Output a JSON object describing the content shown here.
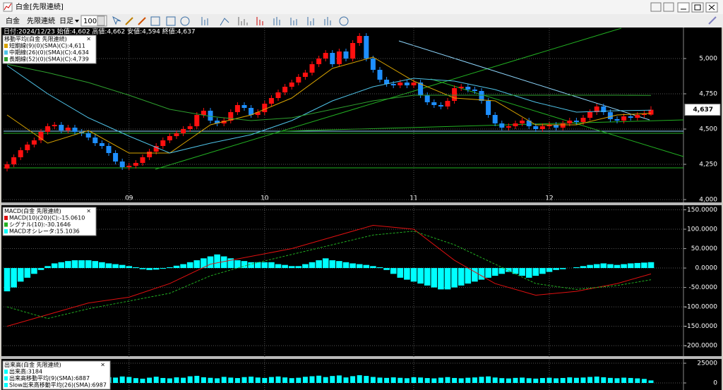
{
  "window": {
    "title": "白金[先限連続]"
  },
  "toolbar": {
    "symbol": "白金",
    "contract": "先限連続",
    "period": "日足",
    "count": "100"
  },
  "chart_data": [
    {
      "type": "candlestick",
      "header": "日付:2024/12/23 始値:4,602 高値:4,662 安値:4,594 終値:4,637",
      "legend_title": "移動平均(白金 先限連続)",
      "categories": [
        null,
        null,
        null,
        null,
        null,
        null,
        null,
        null,
        null,
        null,
        null,
        null,
        null,
        null,
        null,
        null,
        null,
        null,
        "09",
        null,
        null,
        null,
        null,
        null,
        null,
        null,
        null,
        null,
        null,
        null,
        null,
        null,
        null,
        null,
        null,
        null,
        null,
        null,
        "10",
        null,
        null,
        null,
        null,
        null,
        null,
        null,
        null,
        null,
        null,
        null,
        null,
        null,
        null,
        null,
        null,
        null,
        null,
        null,
        null,
        null,
        "11",
        null,
        null,
        null,
        null,
        null,
        null,
        null,
        null,
        null,
        null,
        null,
        null,
        null,
        null,
        null,
        null,
        null,
        null,
        null,
        "12",
        null,
        null,
        null,
        null,
        null,
        null,
        null,
        null,
        null,
        null,
        null,
        null,
        null,
        null,
        null
      ],
      "open": [
        4220,
        4250,
        4300,
        4350,
        4390,
        4420,
        4480,
        4520,
        4530,
        4490,
        4510,
        4480,
        4470,
        4440,
        4400,
        4380,
        4330,
        4270,
        4230,
        4240,
        4260,
        4300,
        4340,
        4380,
        4420,
        4450,
        4470,
        4500,
        4520,
        4600,
        4630,
        4560,
        4540,
        4560,
        4620,
        4670,
        4650,
        4600,
        4620,
        4680,
        4720,
        4760,
        4800,
        4830,
        4870,
        4900,
        4960,
        5000,
        5040,
        4960,
        5050,
        5000,
        5110,
        5160,
        5000,
        4920,
        4850,
        4820,
        4810,
        4830,
        4810,
        4830,
        4740,
        4690,
        4670,
        4660,
        4700,
        4790,
        4800,
        4780,
        4770,
        4700,
        4600,
        4540,
        4510,
        4520,
        4540,
        4560,
        4520,
        4500,
        4520,
        4530,
        4510,
        4540,
        4560,
        4550,
        4580,
        4620,
        4660,
        4620,
        4570,
        4560,
        4590,
        4580,
        4600,
        4602
      ],
      "high": [
        4270,
        4320,
        4370,
        4410,
        4440,
        4500,
        4540,
        4550,
        4550,
        4530,
        4530,
        4500,
        4490,
        4460,
        4420,
        4400,
        4350,
        4290,
        4260,
        4280,
        4320,
        4360,
        4400,
        4440,
        4470,
        4490,
        4520,
        4540,
        4620,
        4650,
        4650,
        4580,
        4580,
        4640,
        4690,
        4690,
        4670,
        4640,
        4700,
        4740,
        4780,
        4820,
        4850,
        4890,
        4920,
        4980,
        5020,
        5060,
        5060,
        5070,
        5070,
        5130,
        5180,
        5180,
        5020,
        4940,
        4870,
        4840,
        4850,
        4850,
        4850,
        4850,
        4760,
        4710,
        4690,
        4720,
        4810,
        4820,
        4820,
        4800,
        4790,
        4720,
        4620,
        4560,
        4540,
        4560,
        4580,
        4580,
        4540,
        4540,
        4550,
        4550,
        4560,
        4580,
        4580,
        4600,
        4640,
        4680,
        4680,
        4640,
        4590,
        4610,
        4610,
        4620,
        4630,
        4662
      ],
      "low": [
        4200,
        4230,
        4280,
        4330,
        4370,
        4400,
        4460,
        4500,
        4470,
        4470,
        4460,
        4450,
        4420,
        4380,
        4360,
        4310,
        4250,
        4210,
        4210,
        4220,
        4240,
        4280,
        4320,
        4360,
        4400,
        4430,
        4450,
        4480,
        4500,
        4580,
        4540,
        4520,
        4520,
        4540,
        4600,
        4630,
        4580,
        4580,
        4600,
        4660,
        4700,
        4740,
        4780,
        4810,
        4850,
        4880,
        4940,
        4980,
        4940,
        4940,
        4980,
        4980,
        5090,
        4980,
        4900,
        4830,
        4800,
        4790,
        4790,
        4790,
        4790,
        4720,
        4670,
        4650,
        4640,
        4640,
        4680,
        4770,
        4760,
        4750,
        4680,
        4580,
        4520,
        4490,
        4490,
        4500,
        4520,
        4500,
        4480,
        4480,
        4500,
        4490,
        4490,
        4520,
        4530,
        4530,
        4560,
        4600,
        4600,
        4550,
        4540,
        4540,
        4560,
        4560,
        4580,
        4594
      ],
      "close": [
        4250,
        4300,
        4350,
        4390,
        4420,
        4480,
        4520,
        4530,
        4490,
        4510,
        4480,
        4470,
        4440,
        4400,
        4380,
        4330,
        4270,
        4230,
        4240,
        4260,
        4300,
        4340,
        4380,
        4420,
        4450,
        4470,
        4500,
        4520,
        4600,
        4630,
        4560,
        4540,
        4560,
        4620,
        4670,
        4650,
        4600,
        4620,
        4680,
        4720,
        4760,
        4800,
        4830,
        4870,
        4900,
        4960,
        5000,
        5040,
        4960,
        5050,
        5000,
        5110,
        5160,
        5000,
        4920,
        4850,
        4820,
        4810,
        4830,
        4810,
        4830,
        4740,
        4690,
        4670,
        4660,
        4700,
        4790,
        4800,
        4780,
        4770,
        4700,
        4600,
        4540,
        4510,
        4520,
        4540,
        4560,
        4520,
        4500,
        4520,
        4530,
        4510,
        4540,
        4560,
        4550,
        4580,
        4620,
        4660,
        4620,
        4570,
        4560,
        4590,
        4580,
        4600,
        4610,
        4637
      ],
      "up_color": "#ff1010",
      "down_color": "#1e8fff",
      "series": [
        {
          "name": "短期線(9)(0)(SMA)(C):4,611",
          "color": "#d9a400",
          "x": [
            0,
            6,
            12,
            18,
            24,
            30,
            36,
            42,
            48,
            54,
            60,
            66,
            72,
            78,
            84,
            90,
            95
          ],
          "values": [
            4600,
            4400,
            4490,
            4330,
            4330,
            4530,
            4600,
            4720,
            4930,
            5010,
            4840,
            4720,
            4700,
            4530,
            4530,
            4600,
            4611
          ]
        },
        {
          "name": "中期線(26)(0)(SMA)(C):4,634",
          "color": "#4fc3e8",
          "x": [
            0,
            6,
            12,
            18,
            24,
            30,
            36,
            42,
            48,
            54,
            60,
            66,
            72,
            78,
            84,
            90,
            95
          ],
          "values": [
            4950,
            4750,
            4580,
            4450,
            4330,
            4400,
            4460,
            4560,
            4700,
            4800,
            4860,
            4840,
            4780,
            4690,
            4620,
            4630,
            4634
          ]
        },
        {
          "name": "長期線(52)(0)(SMA)(C):4,739",
          "color": "#2ea02e",
          "x": [
            0,
            6,
            12,
            18,
            24,
            30,
            36,
            42,
            48,
            54,
            60,
            66,
            72,
            78,
            84,
            90,
            95
          ],
          "values": [
            4960,
            4900,
            4830,
            4740,
            4640,
            4590,
            4560,
            4580,
            4640,
            4700,
            4740,
            4740,
            4740,
            4740,
            4740,
            4740,
            4739
          ]
        }
      ],
      "ylim": [
        4000,
        5215
      ],
      "yticks": [
        {
          "value": 4000,
          "label": "4,000"
        },
        {
          "value": 4250,
          "label": "4,250"
        },
        {
          "value": 4500,
          "label": "4,500"
        },
        {
          "value": 4750,
          "label": "4,750"
        },
        {
          "value": 5000,
          "label": "5,000"
        }
      ],
      "last_price": {
        "value": 4637,
        "label": "4,637"
      },
      "grid": true
    },
    {
      "type": "macd",
      "legend_title": "MACD(白金 先限連続)",
      "series": [
        {
          "name": "MACD(10)(20)(C):-15.0610",
          "color": "#e01010",
          "x": [
            0,
            6,
            12,
            18,
            24,
            30,
            36,
            42,
            48,
            54,
            60,
            66,
            72,
            78,
            84,
            90,
            95
          ],
          "values": [
            -150,
            -120,
            -90,
            -75,
            -40,
            10,
            30,
            50,
            80,
            110,
            100,
            20,
            -40,
            -70,
            -60,
            -40,
            -15.061
          ]
        },
        {
          "name": "シグナル(10):-30.1646",
          "color": "#22b022",
          "dashed": true,
          "x": [
            0,
            6,
            12,
            18,
            24,
            30,
            36,
            42,
            48,
            54,
            60,
            66,
            72,
            78,
            84,
            90,
            95
          ],
          "values": [
            -100,
            -130,
            -105,
            -85,
            -65,
            -20,
            10,
            35,
            60,
            85,
            95,
            60,
            10,
            -40,
            -55,
            -45,
            -30.1646
          ]
        },
        {
          "name": "MACDオシレータ:15.1036",
          "color": "#00ffff",
          "bars": true,
          "values": [
            -60,
            -50,
            -35,
            -25,
            -15,
            -5,
            5,
            12,
            15,
            18,
            20,
            20,
            20,
            18,
            15,
            12,
            10,
            8,
            5,
            2,
            -3,
            -5,
            -4,
            -2,
            2,
            6,
            10,
            15,
            20,
            25,
            30,
            35,
            30,
            25,
            20,
            18,
            15,
            15,
            15,
            15,
            10,
            8,
            5,
            5,
            10,
            15,
            20,
            25,
            20,
            18,
            15,
            12,
            10,
            8,
            5,
            2,
            -5,
            -15,
            -25,
            -30,
            -35,
            -40,
            -45,
            -50,
            -55,
            -55,
            -50,
            -45,
            -40,
            -35,
            -30,
            -25,
            -20,
            -15,
            -10,
            -15,
            -20,
            -25,
            -20,
            -15,
            -10,
            -5,
            -3,
            0,
            2,
            5,
            8,
            10,
            12,
            10,
            8,
            10,
            12,
            13,
            14,
            15.1036
          ]
        }
      ],
      "ylim": [
        -227,
        160
      ],
      "yticks": [
        {
          "value": -200,
          "label": "-200.0000"
        },
        {
          "value": -150,
          "label": "-150.0000"
        },
        {
          "value": -100,
          "label": "-100.0000"
        },
        {
          "value": -50,
          "label": "-50.0000"
        },
        {
          "value": 0,
          "label": "0.0000"
        },
        {
          "value": 50,
          "label": "50.0000"
        },
        {
          "value": 100,
          "label": "100.0000"
        },
        {
          "value": 150,
          "label": "150.0000"
        }
      ],
      "grid": true
    },
    {
      "type": "bar",
      "legend_title": "出来高(白金 先限連続)",
      "series": [
        {
          "name": "出来高:3184",
          "color": "#00ffff",
          "values": [
            6000,
            7000,
            5500,
            8000,
            6500,
            7200,
            5800,
            6900,
            7500,
            6200,
            5600,
            8100,
            7000,
            6400,
            5900,
            7300,
            6800,
            8200,
            7600,
            6100,
            5400,
            6700,
            7900,
            6300,
            5800,
            7100,
            6600,
            8400,
            9000,
            7200,
            6500,
            5900,
            7700,
            6800,
            6200,
            7400,
            8000,
            6900,
            6300,
            7500,
            8200,
            7000,
            6100,
            6600,
            7800,
            8500,
            9200,
            7400,
            8800,
            9500,
            7000,
            8600,
            9800,
            8900,
            7600,
            6800,
            6400,
            7100,
            6500,
            6000,
            7300,
            6900,
            6200,
            5800,
            6700,
            7400,
            6300,
            5900,
            6600,
            7000,
            7800,
            8300,
            6900,
            6100,
            5700,
            6400,
            6800,
            6000,
            5500,
            6200,
            6600,
            5900,
            6300,
            7100,
            6500,
            6900,
            7600,
            8100,
            7200,
            6400,
            6000,
            6700,
            6300,
            5800,
            5100,
            3184
          ]
        }
      ],
      "legend_extra": [
        "出来高移動平均(9)(SMA):6887",
        "Slow出来高移動平均(26)(SMA):6987"
      ],
      "ylim": [
        0,
        29500
      ],
      "yticks": [
        0,
        25000
      ],
      "grid": true
    }
  ]
}
